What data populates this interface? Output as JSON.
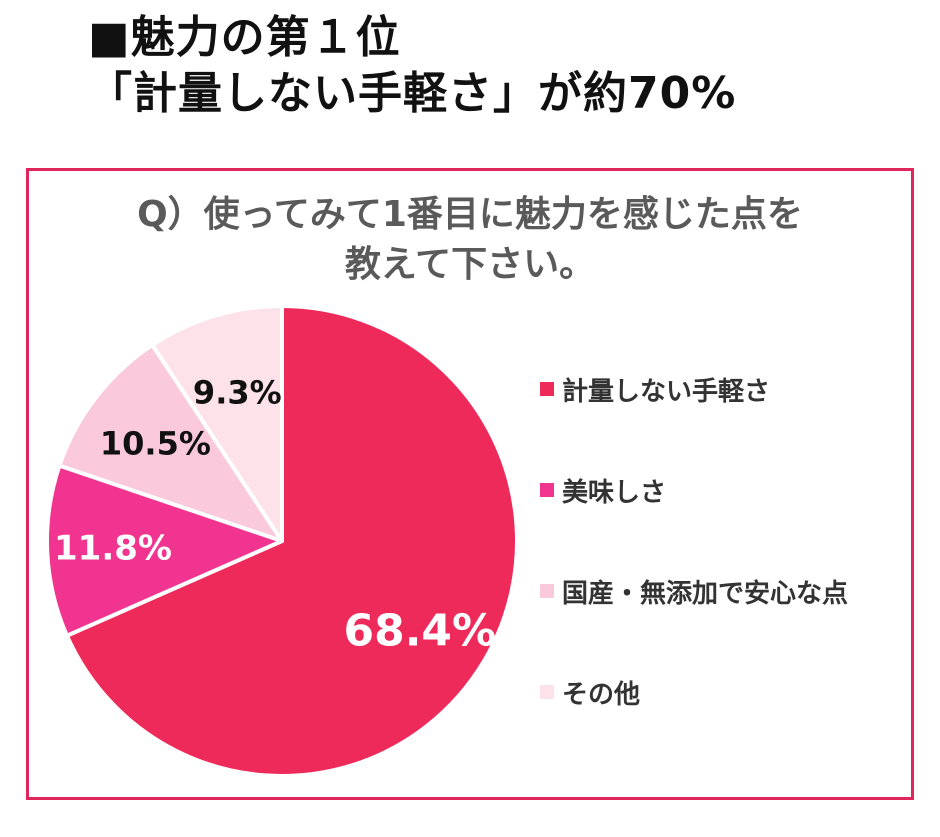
{
  "headline": {
    "line1": "■魅力の第１位",
    "line2": "「計量しない手軽さ」が約70%"
  },
  "question": {
    "line1": "Q）使ってみて1番目に魅力を感じた点を",
    "line2": "教えて下さい。"
  },
  "colors": {
    "border": "#e0265a",
    "question_text": "#5a5a5a"
  },
  "chart_data": {
    "type": "pie",
    "unit": "%",
    "legend_position": "right",
    "slices": [
      {
        "label": "計量しない手軽さ",
        "value": 68.4,
        "display": "68.4%",
        "color": "#ee2a5b",
        "label_color": "#ffffff"
      },
      {
        "label": "美味しさ",
        "value": 11.8,
        "display": "11.8%",
        "color": "#f0348f",
        "label_color": "#ffffff"
      },
      {
        "label": "国産・無添加で安心な点",
        "value": 10.5,
        "display": "10.5%",
        "color": "#fbc9dc",
        "label_color": "#111111"
      },
      {
        "label": "その他",
        "value": 9.3,
        "display": "9.3%",
        "color": "#fde2ea",
        "label_color": "#111111"
      }
    ]
  }
}
